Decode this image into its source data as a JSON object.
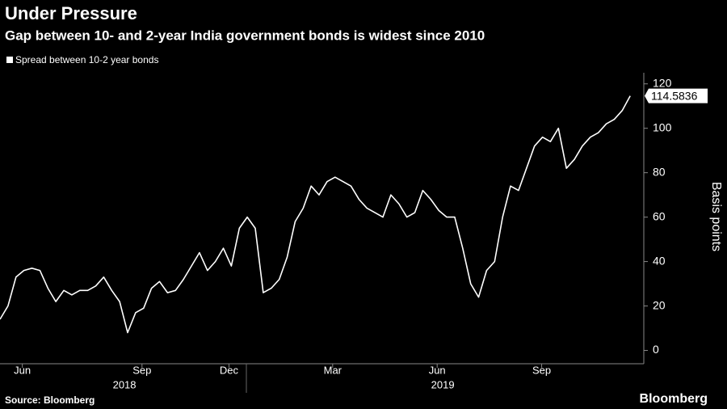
{
  "chart_data": {
    "type": "line",
    "title": "Under Pressure",
    "subtitle": "Gap between 10- and 2-year India government bonds is widest since 2010",
    "y_axis_label": "Basis points",
    "source": "Source: Bloomberg",
    "brand": "Bloomberg",
    "series": [
      {
        "name": "Spread between 10-2 year bonds",
        "color": "#ffffff",
        "values": [
          14,
          20,
          33,
          36,
          37,
          36,
          28,
          22,
          27,
          25,
          27,
          27,
          29,
          33,
          27,
          22,
          8,
          17,
          19,
          28,
          31,
          26,
          27,
          32,
          38,
          44,
          36,
          40,
          46,
          38,
          55,
          60,
          55,
          26,
          28,
          32,
          42,
          58,
          64,
          74,
          70,
          76,
          78,
          76,
          74,
          68,
          64,
          62,
          60,
          70,
          66,
          60,
          62,
          72,
          68,
          63,
          60,
          60,
          46,
          30,
          24,
          36,
          40,
          60,
          74,
          72,
          82,
          92,
          96,
          94,
          100,
          82,
          86,
          92,
          96,
          98,
          102,
          104,
          108,
          114.5836
        ]
      }
    ],
    "xlim": [
      0,
      80.5
    ],
    "xticks": [
      {
        "value": 2.8,
        "label": "Jun"
      },
      {
        "value": 17.8,
        "label": "Sep"
      },
      {
        "value": 28.7,
        "label": "Dec"
      },
      {
        "value": 41.7,
        "label": "Mar"
      },
      {
        "value": 54.8,
        "label": "Jun"
      },
      {
        "value": 67.9,
        "label": "Sep"
      }
    ],
    "year_labels": [
      {
        "value": 15.6,
        "label": "2018"
      },
      {
        "value": 55.5,
        "label": "2019"
      }
    ],
    "ylim": [
      -6,
      125
    ],
    "yticks": [
      0,
      20,
      40,
      60,
      80,
      100,
      120
    ],
    "background": "#000000"
  }
}
